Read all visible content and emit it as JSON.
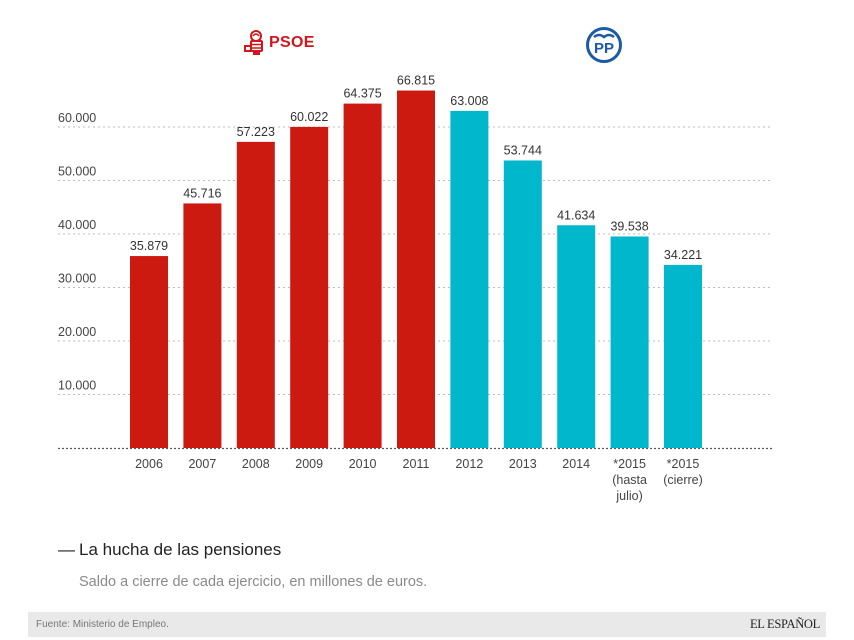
{
  "logos": {
    "psoe": {
      "label": "PSOE",
      "color": "#d3161c"
    },
    "pp": {
      "label": "PP",
      "color": "#1b5aa6"
    }
  },
  "title": "La hucha de las pensiones",
  "title_dash": "—",
  "subtitle": "Saldo a cierre de cada ejercicio, en millones de euros.",
  "footer": {
    "source": "Fuente: Ministerio de Empleo.",
    "brand": "EL ESPAÑOL"
  },
  "colors": {
    "psoe": "#cc1a10",
    "pp": "#00b7cc",
    "grid": "#bdbdbd",
    "baseline": "#555555"
  },
  "chart_data": {
    "type": "bar",
    "title": "La hucha de las pensiones",
    "subtitle": "Saldo a cierre de cada ejercicio, en millones de euros.",
    "xlabel": "",
    "ylabel": "",
    "ylim": [
      0,
      60000
    ],
    "yticks": [
      10000,
      20000,
      30000,
      40000,
      50000,
      60000
    ],
    "ytick_labels": [
      "10.000",
      "20.000",
      "30.000",
      "40.000",
      "50.000",
      "60.000"
    ],
    "grid": true,
    "categories": [
      "2006",
      "2007",
      "2008",
      "2009",
      "2010",
      "2011",
      "2012",
      "2013",
      "2014",
      "*2015 (hasta julio)",
      "*2015 (cierre)"
    ],
    "category_lines": [
      [
        "2006"
      ],
      [
        "2007"
      ],
      [
        "2008"
      ],
      [
        "2009"
      ],
      [
        "2010"
      ],
      [
        "2011"
      ],
      [
        "2012"
      ],
      [
        "2013"
      ],
      [
        "2014"
      ],
      [
        "*2015",
        "(hasta",
        "julio)"
      ],
      [
        "*2015",
        "(cierre)"
      ]
    ],
    "values": [
      35879,
      45716,
      57223,
      60022,
      64375,
      66815,
      63008,
      53744,
      41634,
      39538,
      34221
    ],
    "value_labels": [
      "35.879",
      "45.716",
      "57.223",
      "60.022",
      "64.375",
      "66.815",
      "63.008",
      "53.744",
      "41.634",
      "39.538",
      "34.221"
    ],
    "groups": [
      "PSOE",
      "PSOE",
      "PSOE",
      "PSOE",
      "PSOE",
      "PSOE",
      "PP",
      "PP",
      "PP",
      "PP",
      "PP"
    ],
    "legend": [
      "PSOE",
      "PP"
    ],
    "legend_position": "top"
  }
}
